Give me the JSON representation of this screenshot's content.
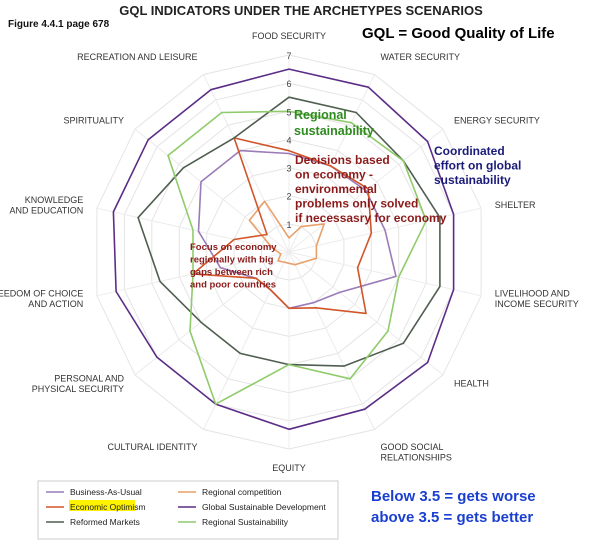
{
  "page": {
    "figure_ref": "Figure 4.4.1 page 678",
    "gql_definition": "GQL = Good Quality of Life",
    "note_worse": "Below 3.5 = gets worse",
    "note_better": "above 3.5 = gets better"
  },
  "chart_data": {
    "type": "radar",
    "title": "GQL INDICATORS UNDER THE ARCHETYPES SCENARIOS",
    "rlim": [
      0,
      7
    ],
    "ticks": [
      "1",
      "2",
      "3",
      "4",
      "5",
      "6",
      "7"
    ],
    "axes": [
      [
        "FOOD SECURITY"
      ],
      [
        "WATER SECURITY"
      ],
      [
        "ENERGY SECURITY"
      ],
      [
        "SHELTER"
      ],
      [
        "LIVELIHOOD AND",
        "INCOME SECURITY"
      ],
      [
        "HEALTH"
      ],
      [
        "GOOD SOCIAL",
        "RELATIONSHIPS"
      ],
      [
        "EQUITY"
      ],
      [
        "CULTURAL IDENTITY"
      ],
      [
        "PERSONAL AND",
        "PHYSICAL SECURITY"
      ],
      [
        "FREEDOM OF CHOICE",
        "AND ACTION"
      ],
      [
        "KNOWLEDGE",
        "AND EDUCATION"
      ],
      [
        "SPIRITUALITY"
      ],
      [
        "RECREATION AND LEISURE"
      ]
    ],
    "series": [
      {
        "name": "Business-As-Usual",
        "color": "#9b7bb8",
        "values": [
          3.5,
          3.4,
          3.5,
          3.5,
          3.9,
          2.3,
          2.0,
          2.0,
          1.5,
          1.5,
          2.5,
          3.3,
          4.0,
          4.0
        ]
      },
      {
        "name": "Regional competition",
        "color": "#e8a06a",
        "values": [
          0.5,
          1.0,
          1.6,
          1.0,
          1.0,
          0.6,
          0.5,
          0.4,
          0.4,
          0.5,
          0.3,
          0.6,
          1.8,
          2.0
        ]
      },
      {
        "name": "Economic Optimism",
        "color": "#d2552a",
        "values": [
          3.6,
          3.4,
          3.6,
          3.0,
          2.5,
          3.5,
          2.2,
          2.0,
          1.5,
          1.5,
          3.5,
          2.0,
          1.0,
          4.5
        ]
      },
      {
        "name": "Global Sustainable Development",
        "color": "#5b2d86",
        "values": [
          6.5,
          6.5,
          6.3,
          6.0,
          6.0,
          6.3,
          6.2,
          6.3,
          6.0,
          6.0,
          6.3,
          6.4,
          6.4,
          6.4
        ]
      },
      {
        "name": "Reformed Markets",
        "color": "#4f5e4f",
        "values": [
          5.5,
          5.5,
          5.2,
          5.5,
          5.5,
          5.2,
          4.5,
          4.0,
          4.0,
          4.0,
          4.7,
          5.5,
          4.8,
          4.5
        ]
      },
      {
        "name": "Regional Sustainability",
        "color": "#8fcb6b",
        "values": [
          5.0,
          5.1,
          5.2,
          5.0,
          4.0,
          4.5,
          5.0,
          4.0,
          6.0,
          4.5,
          3.5,
          3.5,
          5.5,
          5.5
        ]
      }
    ],
    "legend": [
      "Business-As-Usual",
      "Regional competition",
      "Economic Optimism",
      "Global Sustainable Development",
      "Reformed Markets",
      "Regional Sustainability"
    ],
    "highlighted_legend_item": "Economic Optimism",
    "annotations": [
      {
        "lines": [
          "Regional",
          "sustainability"
        ],
        "color": "#2f8a20"
      },
      {
        "lines": [
          "Decisions based",
          "on economy -",
          "environmental",
          "problems only solved",
          "if necessasry for economy"
        ],
        "color": "#8b1a1a"
      },
      {
        "lines": [
          "Coordinated",
          "effort on global",
          "sustainability"
        ],
        "color": "#1a1a7a"
      },
      {
        "lines": [
          "Focus on economy",
          "regionally with big",
          "gaps between rich",
          "and poor countries"
        ],
        "color": "#8b1a1a"
      }
    ]
  }
}
